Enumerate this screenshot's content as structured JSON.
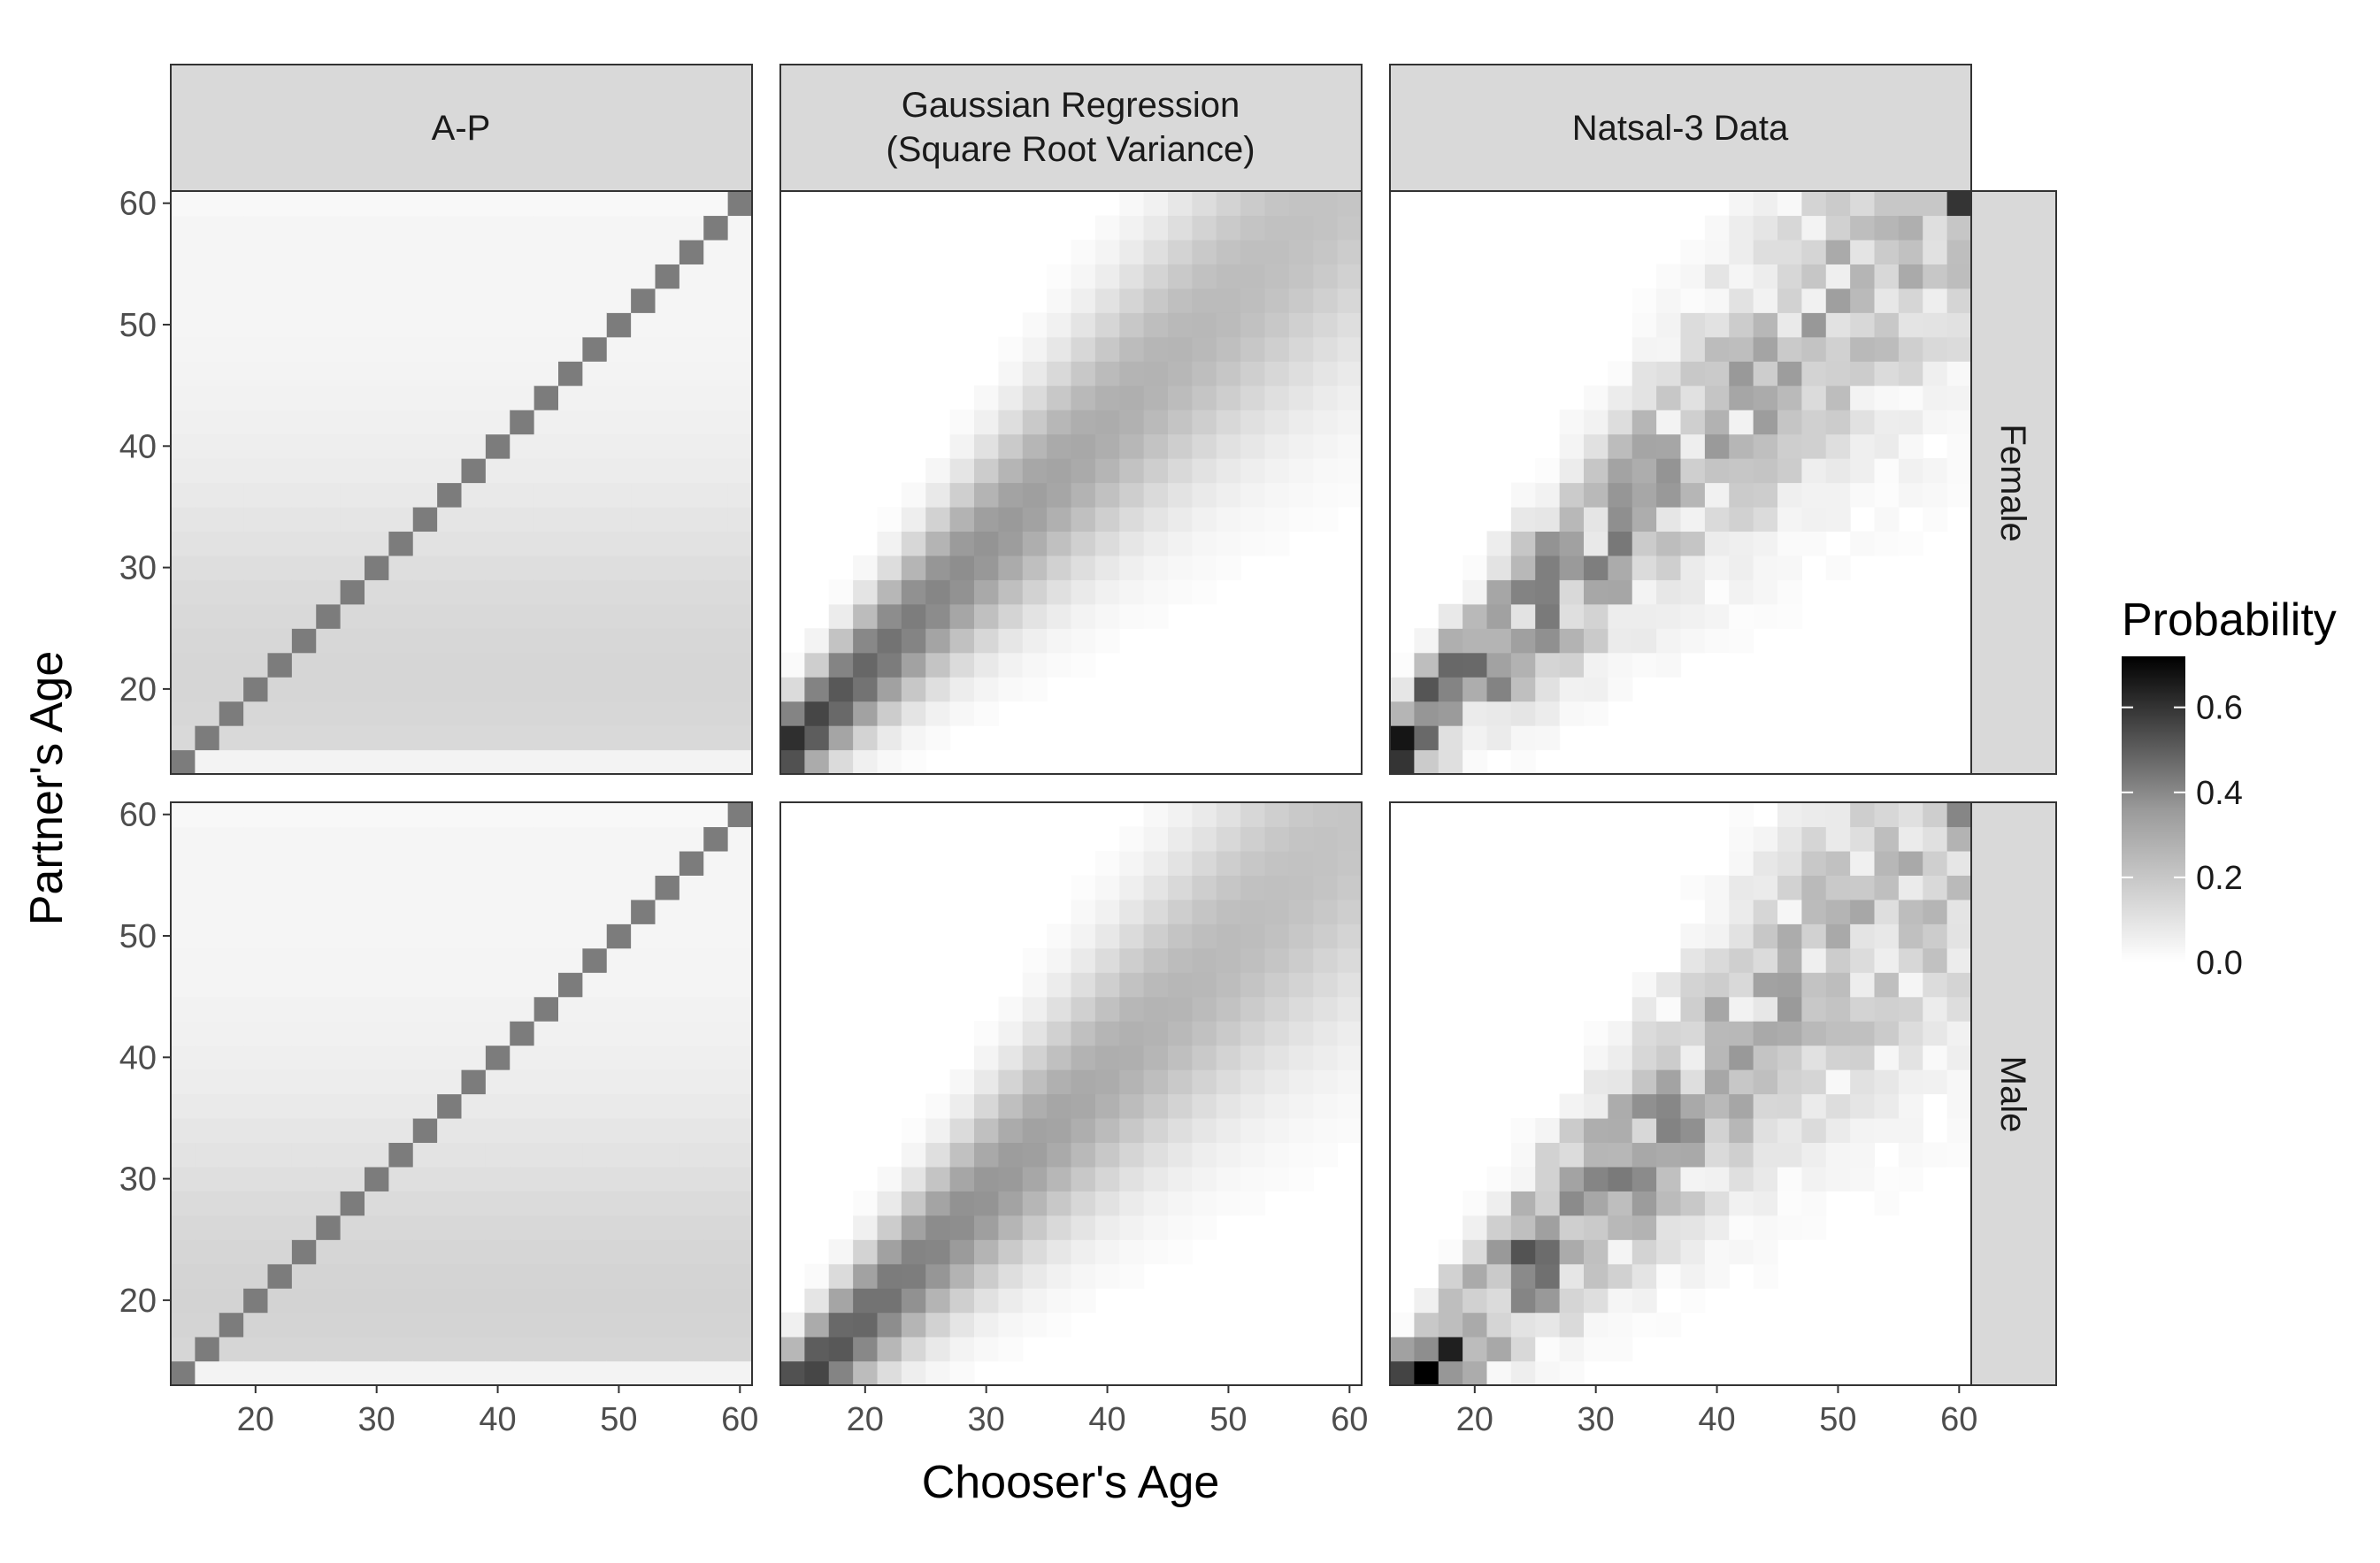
{
  "chart_data": {
    "type": "heatmap",
    "xlabel": "Chooser's Age",
    "ylabel": "Partner's Age",
    "columns": [
      "A-P",
      "Gaussian Regression\n(Square Root Variance)",
      "Natsal-3 Data"
    ],
    "rows": [
      "Female",
      "Male"
    ],
    "xlim": [
      13,
      61
    ],
    "ylim": [
      13,
      61
    ],
    "x_ticks": [
      "20",
      "30",
      "40",
      "50",
      "60"
    ],
    "y_ticks": [
      "20",
      "30",
      "40",
      "50",
      "60"
    ],
    "age_min": 14,
    "age_max": 60,
    "age_step": 2,
    "colorbar": {
      "title": "Probability",
      "min": 0,
      "max": 0.72,
      "ticks": [
        "0.0",
        "0.2",
        "0.4",
        "0.6"
      ],
      "low_color": "#ffffff",
      "high_color": "#000000"
    },
    "panels_description": {
      "ap_diagonal_probability": 0.33,
      "ap_background_female_peak": 0.085,
      "ap_background_male_peak": 0.09,
      "gauss_corner_female": 0.65,
      "gauss_corner_male": 0.78,
      "natsal_peak_female": 0.65,
      "natsal_peak_male": 0.72
    }
  },
  "colors": {
    "strip_fill": "#d9d9d9",
    "panel_border": "#333333",
    "tick_color": "#333333"
  }
}
